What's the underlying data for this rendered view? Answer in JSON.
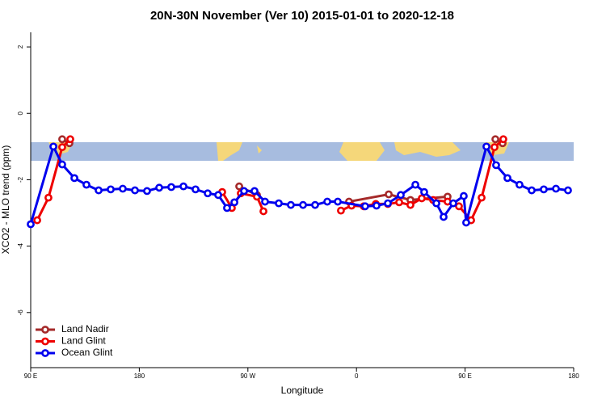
{
  "chart_data": {
    "type": "line",
    "title": "20N-30N November (Ver 10)   2015-01-01 to 2020-12-18",
    "xlabel": "Longitude",
    "ylabel": "XCO2 - MLO trend (ppm)",
    "xlim": [
      90,
      540
    ],
    "xticks": [
      {
        "value": 90,
        "label": "90 E"
      },
      180,
      {
        "value": 270,
        "label": "90 W"
      },
      {
        "value": 360,
        "label": "0"
      },
      {
        "value": 450,
        "label": "90 E"
      },
      {
        "value": 540,
        "label": "180"
      }
    ],
    "ylim": [
      -7.66,
      2.44
    ],
    "yticks": [
      -6,
      -4,
      -2,
      0,
      2
    ],
    "legend": "bottom-left",
    "series": [
      {
        "name": "Land Nadir",
        "color": "#a52a2a",
        "x": [
          116.1,
          122.1,
          null,
          262.8,
          277.5,
          null,
          353.8,
          386.7,
          404.7,
          435.5,
          null,
          475.1,
          481.1
        ],
        "values": [
          -0.78,
          -0.9,
          null,
          -2.2,
          -2.46,
          null,
          -2.66,
          -2.44,
          -2.61,
          -2.51,
          null,
          -0.78,
          -0.9
        ]
      },
      {
        "name": "Land Glint",
        "color": "#ee0000",
        "x": [
          95.4,
          104.7,
          116.1,
          122.8,
          null,
          248.7,
          256.7,
          264.1,
          277.5,
          282.9,
          null,
          347.1,
          355.9,
          366.0,
          376.0,
          386.0,
          395.4,
          404.7,
          414.1,
          423.5,
          435.5,
          444.9,
          455.0,
          463.7,
          474.4,
          481.7
        ],
        "values": [
          -3.22,
          -2.54,
          -1.02,
          -0.78,
          null,
          -2.37,
          -2.85,
          -2.41,
          -2.51,
          -2.95,
          null,
          -2.93,
          -2.78,
          -2.8,
          -2.73,
          -2.73,
          -2.68,
          -2.76,
          -2.56,
          -2.61,
          -2.66,
          -2.8,
          -3.22,
          -2.54,
          -1.02,
          -0.78
        ]
      },
      {
        "name": "Ocean Glint",
        "color": "#0000ee",
        "x": [
          90,
          108.8,
          116.1,
          126.2,
          136.2,
          146.3,
          156.3,
          166.3,
          176.4,
          186.4,
          196.5,
          206.5,
          216.6,
          226.6,
          236.7,
          245.4,
          252.7,
          258.8,
          266.8,
          275.5,
          284.2,
          295.6,
          305.6,
          315.7,
          325.7,
          335.8,
          344.5,
          367.2,
          376.6,
          386.0,
          396.7,
          408.8,
          416.1,
          426.2,
          432.2,
          440.2,
          448.9,
          450.9,
          467.7,
          475.7,
          485.1,
          495.1,
          505.2,
          515.2,
          525.3,
          535.3
        ],
        "values": [
          -3.34,
          -1.0,
          -1.54,
          -1.95,
          -2.15,
          -2.32,
          -2.29,
          -2.27,
          -2.32,
          -2.34,
          -2.24,
          -2.22,
          -2.2,
          -2.29,
          -2.41,
          -2.46,
          -2.85,
          -2.68,
          -2.34,
          -2.34,
          -2.66,
          -2.71,
          -2.76,
          -2.76,
          -2.76,
          -2.66,
          -2.66,
          -2.8,
          -2.78,
          -2.71,
          -2.46,
          -2.15,
          -2.37,
          -2.71,
          -3.12,
          -2.71,
          -2.49,
          -3.29,
          -1.0,
          -1.56,
          -1.95,
          -2.15,
          -2.32,
          -2.29,
          -2.27,
          -2.32
        ]
      }
    ]
  }
}
